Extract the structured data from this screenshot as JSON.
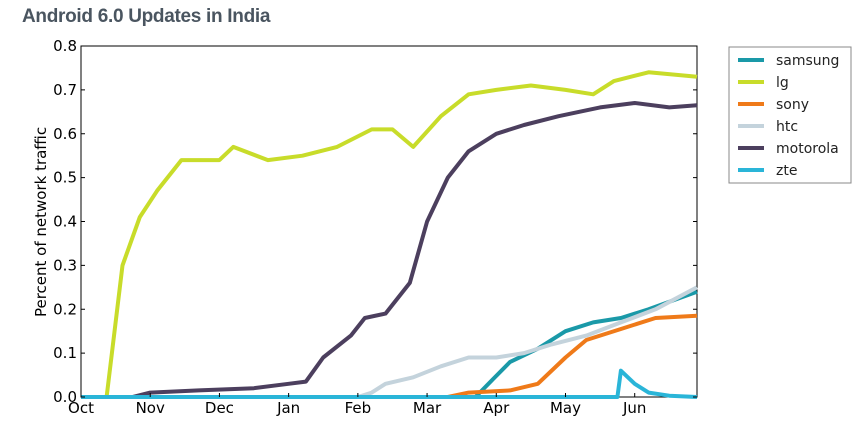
{
  "chart_data": {
    "type": "line",
    "title": "Android 6.0 Updates in India",
    "xlabel": "",
    "ylabel": "Percent of network traffic",
    "ylim": [
      0,
      0.8
    ],
    "xlim": [
      0,
      8.9
    ],
    "x_units": "months since Oct 1",
    "xticks": [
      {
        "v": 0,
        "label": "Oct"
      },
      {
        "v": 1,
        "label": "Nov"
      },
      {
        "v": 2,
        "label": "Dec"
      },
      {
        "v": 3,
        "label": "Jan"
      },
      {
        "v": 4,
        "label": "Feb"
      },
      {
        "v": 5,
        "label": "Mar"
      },
      {
        "v": 6,
        "label": "Apr"
      },
      {
        "v": 7,
        "label": "May"
      },
      {
        "v": 8,
        "label": "Jun"
      }
    ],
    "yticks": [
      "0.0",
      "0.1",
      "0.2",
      "0.3",
      "0.4",
      "0.5",
      "0.6",
      "0.7",
      "0.8"
    ],
    "legend_position": "outside-right",
    "series": [
      {
        "name": "samsung",
        "color": "#1a99a8",
        "x": [
          0,
          5.7,
          5.95,
          6.2,
          6.6,
          7.0,
          7.4,
          7.8,
          8.2,
          8.9
        ],
        "y": [
          0,
          0,
          0.04,
          0.08,
          0.11,
          0.15,
          0.17,
          0.18,
          0.2,
          0.24
        ]
      },
      {
        "name": "lg",
        "color": "#c8dc2a",
        "x": [
          0,
          0.37,
          0.6,
          0.85,
          1.1,
          1.45,
          2.0,
          2.2,
          2.7,
          3.2,
          3.7,
          4.2,
          4.5,
          4.8,
          5.2,
          5.6,
          6.0,
          6.5,
          7.0,
          7.4,
          7.7,
          8.2,
          8.9
        ],
        "y": [
          0,
          0,
          0.3,
          0.41,
          0.47,
          0.54,
          0.54,
          0.57,
          0.54,
          0.55,
          0.57,
          0.61,
          0.61,
          0.57,
          0.64,
          0.69,
          0.7,
          0.71,
          0.7,
          0.69,
          0.72,
          0.74,
          0.73
        ]
      },
      {
        "name": "sony",
        "color": "#ef7a19",
        "x": [
          0,
          5.3,
          5.6,
          6.2,
          6.6,
          7.0,
          7.3,
          7.8,
          8.3,
          8.9
        ],
        "y": [
          0,
          0,
          0.01,
          0.015,
          0.03,
          0.09,
          0.13,
          0.155,
          0.18,
          0.185
        ]
      },
      {
        "name": "htc",
        "color": "#c4d3dc",
        "x": [
          0,
          4.0,
          4.2,
          4.4,
          4.8,
          5.2,
          5.6,
          6.0,
          6.4,
          6.8,
          7.3,
          7.8,
          8.3,
          8.9
        ],
        "y": [
          0,
          0,
          0.01,
          0.03,
          0.045,
          0.07,
          0.09,
          0.09,
          0.1,
          0.12,
          0.14,
          0.17,
          0.2,
          0.25
        ]
      },
      {
        "name": "motorola",
        "color": "#4c3f5e",
        "x": [
          0,
          0.75,
          1.0,
          1.7,
          2.5,
          3.0,
          3.25,
          3.5,
          3.9,
          4.1,
          4.4,
          4.75,
          5.0,
          5.3,
          5.6,
          6.0,
          6.4,
          6.9,
          7.2,
          7.5,
          8.0,
          8.5,
          8.9
        ],
        "y": [
          0,
          0,
          0.01,
          0.015,
          0.02,
          0.03,
          0.035,
          0.09,
          0.14,
          0.18,
          0.19,
          0.26,
          0.4,
          0.5,
          0.56,
          0.6,
          0.62,
          0.64,
          0.65,
          0.66,
          0.67,
          0.66,
          0.665
        ]
      },
      {
        "name": "zte",
        "color": "#2ab5d8",
        "x": [
          0,
          7.75,
          7.8,
          8.0,
          8.2,
          8.5,
          8.9
        ],
        "y": [
          0,
          0,
          0.06,
          0.03,
          0.01,
          0.003,
          0
        ]
      }
    ]
  }
}
